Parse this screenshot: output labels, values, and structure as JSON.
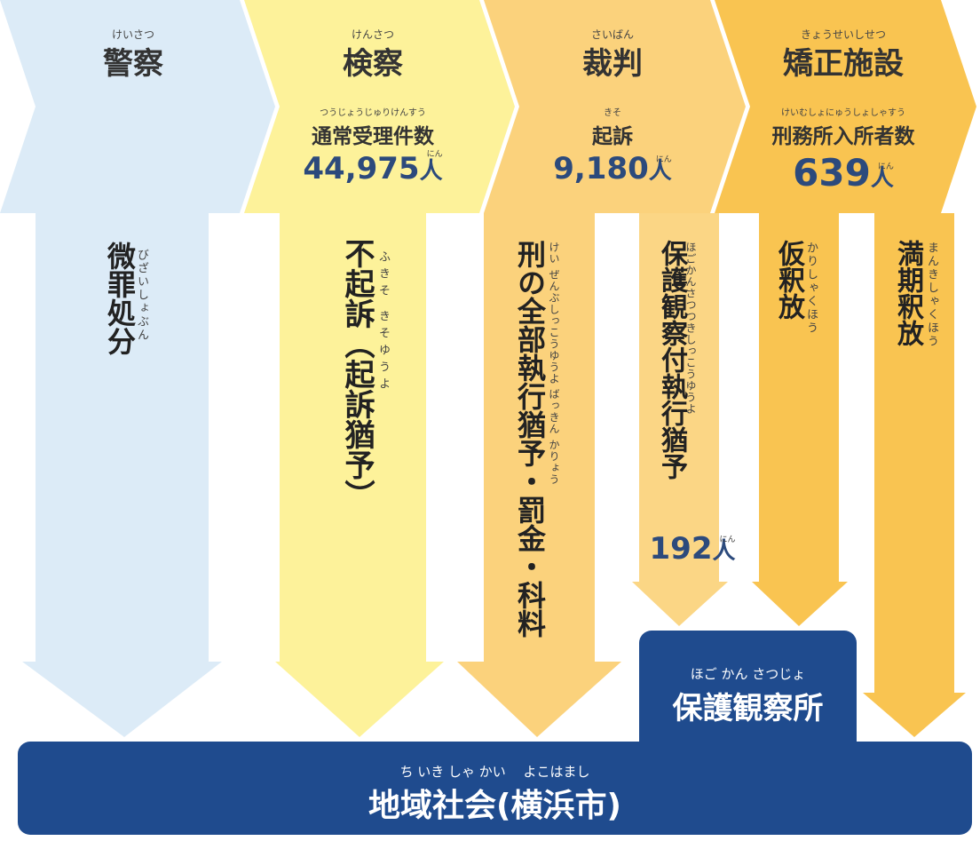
{
  "stages": [
    {
      "label": "警察",
      "reading": "けいさつ"
    },
    {
      "label": "検察",
      "reading": "けんさつ",
      "metric": {
        "label": "通常受理件数",
        "reading": "つうじょうじゅりけんすう",
        "value": "44,975",
        "unit": "人",
        "unit_reading": "にん"
      }
    },
    {
      "label": "裁判",
      "reading": "さいばん",
      "metric": {
        "label": "起訴",
        "reading": "きそ",
        "value": "9,180",
        "unit": "人",
        "unit_reading": "にん"
      }
    },
    {
      "label": "矯正施設",
      "reading": "きょうせいしせつ",
      "metric": {
        "label": "刑務所入所者数",
        "reading": "けいむしょにゅうしょしゃすう",
        "value": "639",
        "unit": "人",
        "unit_reading": "にん"
      }
    }
  ],
  "flows": [
    {
      "label": "微罪処分",
      "reading": "びざいしょぶん"
    },
    {
      "label": "不起訴（起訴猶予）",
      "reading": "ふきそ きそゆうよ"
    },
    {
      "label": "刑の全部執行猶予・罰金・科料",
      "reading": "けい ぜんぶしっこうゆうよ ばっきん かりょう"
    },
    {
      "label": "保護観察付執行猶予",
      "reading": "ほごかんさつつきしっこうゆうよ",
      "count": {
        "value": "192",
        "unit": "人",
        "unit_reading": "にん"
      }
    },
    {
      "label": "仮釈放",
      "reading": "かりしゃくほう"
    },
    {
      "label": "満期釈放",
      "reading": "まんきしゃくほう"
    }
  ],
  "boxes": {
    "probation_office": {
      "label": "保護観察所",
      "reading": "ほご かん さつじょ"
    },
    "community": {
      "label": "地域社会(横浜市)",
      "reading": "ち いき しゃ かい　 よこはまし"
    }
  }
}
